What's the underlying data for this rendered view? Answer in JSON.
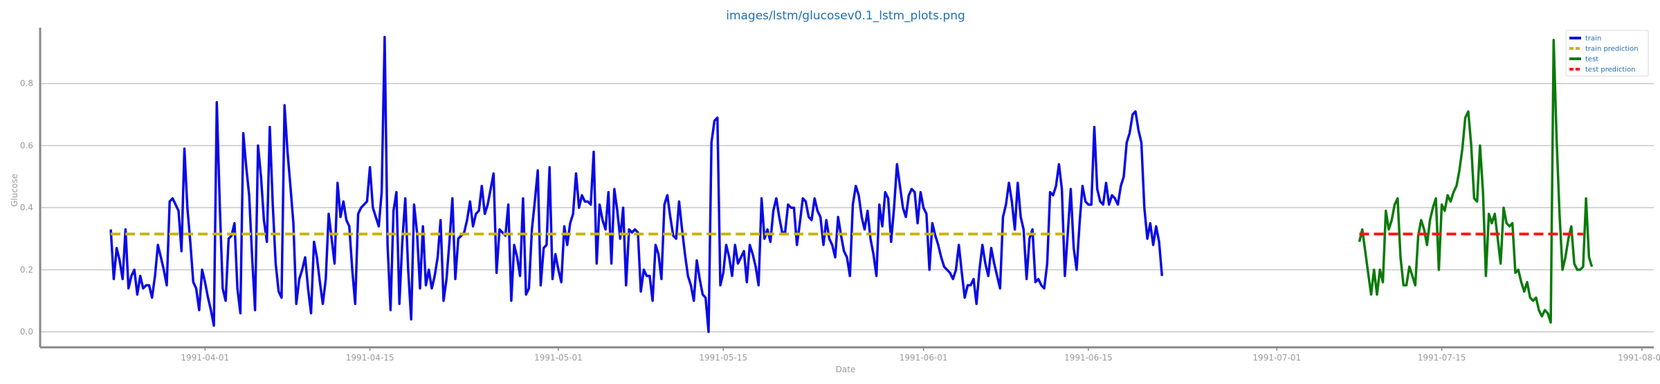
{
  "chart_data": {
    "type": "line",
    "title": "images/lstm/glucosev0.1_lstm_plots.png",
    "xlabel": "Date",
    "ylabel": "Glucose",
    "xlim": [
      "1991-03-18",
      "1991-08-02"
    ],
    "ylim": [
      -0.05,
      0.98
    ],
    "grid": "horizontal",
    "legend_position": "top-right",
    "x_ticks": [
      "1991-04-01",
      "1991-04-15",
      "1991-05-01",
      "1991-05-15",
      "1991-06-01",
      "1991-06-15",
      "1991-07-01",
      "1991-07-15",
      "1991-08-01"
    ],
    "y_ticks": [
      0.0,
      0.2,
      0.4,
      0.6,
      0.8
    ],
    "series": [
      {
        "name": "train",
        "color": "#0a0ae6",
        "style": "solid",
        "x_start": "1991-03-24",
        "step_days": 0.25,
        "values": [
          0.33,
          0.17,
          0.27,
          0.23,
          0.17,
          0.33,
          0.14,
          0.18,
          0.2,
          0.12,
          0.18,
          0.14,
          0.15,
          0.15,
          0.11,
          0.18,
          0.28,
          0.24,
          0.2,
          0.15,
          0.42,
          0.43,
          0.41,
          0.39,
          0.26,
          0.59,
          0.4,
          0.29,
          0.16,
          0.14,
          0.07,
          0.2,
          0.16,
          0.11,
          0.07,
          0.02,
          0.74,
          0.41,
          0.14,
          0.1,
          0.3,
          0.31,
          0.35,
          0.14,
          0.06,
          0.64,
          0.53,
          0.44,
          0.24,
          0.07,
          0.6,
          0.5,
          0.36,
          0.29,
          0.66,
          0.41,
          0.22,
          0.13,
          0.11,
          0.73,
          0.58,
          0.47,
          0.35,
          0.09,
          0.17,
          0.2,
          0.24,
          0.14,
          0.06,
          0.29,
          0.24,
          0.16,
          0.09,
          0.17,
          0.38,
          0.3,
          0.22,
          0.48,
          0.37,
          0.42,
          0.36,
          0.34,
          0.2,
          0.09,
          0.38,
          0.4,
          0.41,
          0.42,
          0.53,
          0.4,
          0.37,
          0.34,
          0.45,
          0.95,
          0.28,
          0.07,
          0.39,
          0.45,
          0.09,
          0.29,
          0.43,
          0.2,
          0.04,
          0.41,
          0.32,
          0.14,
          0.34,
          0.15,
          0.2,
          0.14,
          0.18,
          0.24,
          0.36,
          0.1,
          0.17,
          0.29,
          0.43,
          0.17,
          0.3,
          0.31,
          0.32,
          0.36,
          0.42,
          0.34,
          0.38,
          0.39,
          0.47,
          0.38,
          0.41,
          0.46,
          0.51,
          0.19,
          0.33,
          0.32,
          0.31,
          0.41,
          0.1,
          0.28,
          0.24,
          0.18,
          0.43,
          0.12,
          0.14,
          0.33,
          0.42,
          0.52,
          0.15,
          0.27,
          0.28,
          0.53,
          0.17,
          0.25,
          0.2,
          0.16,
          0.34,
          0.28,
          0.35,
          0.38,
          0.51,
          0.4,
          0.44,
          0.42,
          0.42,
          0.41,
          0.58,
          0.22,
          0.41,
          0.36,
          0.33,
          0.45,
          0.22,
          0.46,
          0.39,
          0.3,
          0.4,
          0.15,
          0.33,
          0.32,
          0.33,
          0.32,
          0.13,
          0.2,
          0.18,
          0.18,
          0.1,
          0.28,
          0.25,
          0.17,
          0.41,
          0.44,
          0.37,
          0.31,
          0.3,
          0.42,
          0.33,
          0.25,
          0.18,
          0.15,
          0.1,
          0.23,
          0.17,
          0.12,
          0.11,
          0.0,
          0.61,
          0.68,
          0.69,
          0.15,
          0.19,
          0.28,
          0.24,
          0.18,
          0.28,
          0.22,
          0.24,
          0.26,
          0.16,
          0.28,
          0.25,
          0.21,
          0.15,
          0.43,
          0.3,
          0.33,
          0.29,
          0.39,
          0.43,
          0.37,
          0.32,
          0.32,
          0.41,
          0.4,
          0.4,
          0.28,
          0.35,
          0.43,
          0.42,
          0.37,
          0.36,
          0.43,
          0.39,
          0.37,
          0.28,
          0.36,
          0.3,
          0.28,
          0.24,
          0.37,
          0.31,
          0.26,
          0.24,
          0.18,
          0.41,
          0.47,
          0.44,
          0.37,
          0.33,
          0.39,
          0.3,
          0.25,
          0.18,
          0.41,
          0.34,
          0.45,
          0.43,
          0.29,
          0.4,
          0.54,
          0.47,
          0.4,
          0.37,
          0.44,
          0.46,
          0.45,
          0.35,
          0.45,
          0.4,
          0.38,
          0.2,
          0.35,
          0.31,
          0.28,
          0.24,
          0.21,
          0.2,
          0.19,
          0.17,
          0.2,
          0.28,
          0.19,
          0.11,
          0.15,
          0.15,
          0.17,
          0.09,
          0.2,
          0.28,
          0.22,
          0.18,
          0.27,
          0.22,
          0.18,
          0.14,
          0.37,
          0.41,
          0.48,
          0.42,
          0.33,
          0.48,
          0.37,
          0.33,
          0.17,
          0.3,
          0.33,
          0.16,
          0.17,
          0.15,
          0.14,
          0.22,
          0.45,
          0.44,
          0.47,
          0.54,
          0.46,
          0.18,
          0.32,
          0.46,
          0.27,
          0.2,
          0.35,
          0.47,
          0.42,
          0.41,
          0.41,
          0.66,
          0.46,
          0.42,
          0.41,
          0.48,
          0.41,
          0.44,
          0.43,
          0.41,
          0.47,
          0.5,
          0.61,
          0.64,
          0.7,
          0.71,
          0.65,
          0.61,
          0.4,
          0.3,
          0.35,
          0.28,
          0.34,
          0.29,
          0.18
        ]
      },
      {
        "name": "train prediction",
        "color": "#c8b400",
        "style": "dashed",
        "x": [
          "1991-03-24",
          "1991-06-13"
        ],
        "values": [
          0.315,
          0.315
        ]
      },
      {
        "name": "test",
        "color": "#0a7a0a",
        "style": "solid",
        "x_start": "1991-07-08",
        "step_days": 0.25,
        "values": [
          0.29,
          0.33,
          0.26,
          0.19,
          0.12,
          0.2,
          0.12,
          0.2,
          0.16,
          0.39,
          0.33,
          0.36,
          0.41,
          0.43,
          0.24,
          0.15,
          0.15,
          0.21,
          0.18,
          0.15,
          0.31,
          0.36,
          0.33,
          0.28,
          0.36,
          0.4,
          0.43,
          0.2,
          0.41,
          0.39,
          0.44,
          0.42,
          0.45,
          0.47,
          0.52,
          0.59,
          0.69,
          0.71,
          0.6,
          0.43,
          0.42,
          0.6,
          0.45,
          0.18,
          0.38,
          0.35,
          0.38,
          0.3,
          0.22,
          0.4,
          0.35,
          0.34,
          0.35,
          0.19,
          0.2,
          0.16,
          0.13,
          0.16,
          0.11,
          0.1,
          0.11,
          0.07,
          0.05,
          0.07,
          0.06,
          0.03,
          0.94,
          0.62,
          0.38,
          0.2,
          0.24,
          0.3,
          0.34,
          0.22,
          0.2,
          0.2,
          0.21,
          0.43,
          0.24,
          0.21
        ]
      },
      {
        "name": "test prediction",
        "color": "#ff1414",
        "style": "dashed",
        "x": [
          "1991-07-08",
          "1991-07-27"
        ],
        "values": [
          0.315,
          0.315
        ]
      }
    ]
  }
}
